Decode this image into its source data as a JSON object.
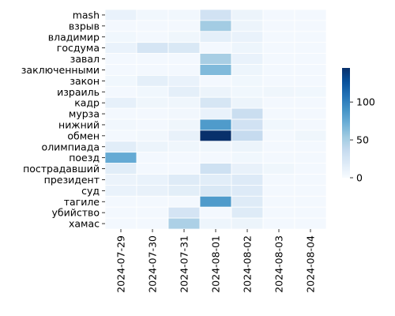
{
  "chart_data": {
    "type": "heatmap",
    "title": "",
    "xlabel": "",
    "ylabel": "",
    "x": [
      "2024-07-29",
      "2024-07-30",
      "2024-07-31",
      "2024-08-01",
      "2024-08-02",
      "2024-08-03",
      "2024-08-04"
    ],
    "y": [
      "mash",
      "взрыв",
      "владимир",
      "госдума",
      "завал",
      "заключенными",
      "закон",
      "израиль",
      "кадр",
      "мурза",
      "нижний",
      "обмен",
      "олимпиада",
      "поезд",
      "пострадавший",
      "президент",
      "суд",
      "тагиле",
      "убийство",
      "хамас"
    ],
    "values": [
      [
        10,
        4,
        4,
        28,
        8,
        3,
        3
      ],
      [
        3,
        3,
        3,
        52,
        8,
        3,
        3
      ],
      [
        5,
        3,
        6,
        14,
        10,
        3,
        3
      ],
      [
        10,
        25,
        22,
        3,
        7,
        3,
        3
      ],
      [
        3,
        3,
        3,
        50,
        10,
        3,
        3
      ],
      [
        3,
        3,
        3,
        65,
        7,
        3,
        3
      ],
      [
        5,
        14,
        10,
        3,
        5,
        3,
        3
      ],
      [
        3,
        5,
        14,
        8,
        5,
        6,
        5
      ],
      [
        12,
        6,
        6,
        24,
        8,
        3,
        3
      ],
      [
        3,
        3,
        4,
        10,
        33,
        3,
        3
      ],
      [
        4,
        3,
        6,
        85,
        28,
        5,
        3
      ],
      [
        3,
        4,
        11,
        145,
        36,
        3,
        6
      ],
      [
        16,
        8,
        6,
        6,
        8,
        3,
        3
      ],
      [
        75,
        3,
        3,
        3,
        5,
        3,
        3
      ],
      [
        16,
        3,
        3,
        30,
        11,
        6,
        3
      ],
      [
        9,
        10,
        18,
        16,
        19,
        3,
        3
      ],
      [
        10,
        11,
        15,
        22,
        19,
        3,
        3
      ],
      [
        3,
        3,
        3,
        85,
        18,
        3,
        3
      ],
      [
        3,
        3,
        26,
        3,
        18,
        3,
        3
      ],
      [
        3,
        3,
        48,
        7,
        8,
        3,
        3
      ]
    ],
    "colorbar": {
      "ticks": [
        0,
        50,
        100
      ],
      "vmin": 0,
      "vmax": 145,
      "colormap": "Blues"
    },
    "cell_border_color": "#ffffff"
  }
}
